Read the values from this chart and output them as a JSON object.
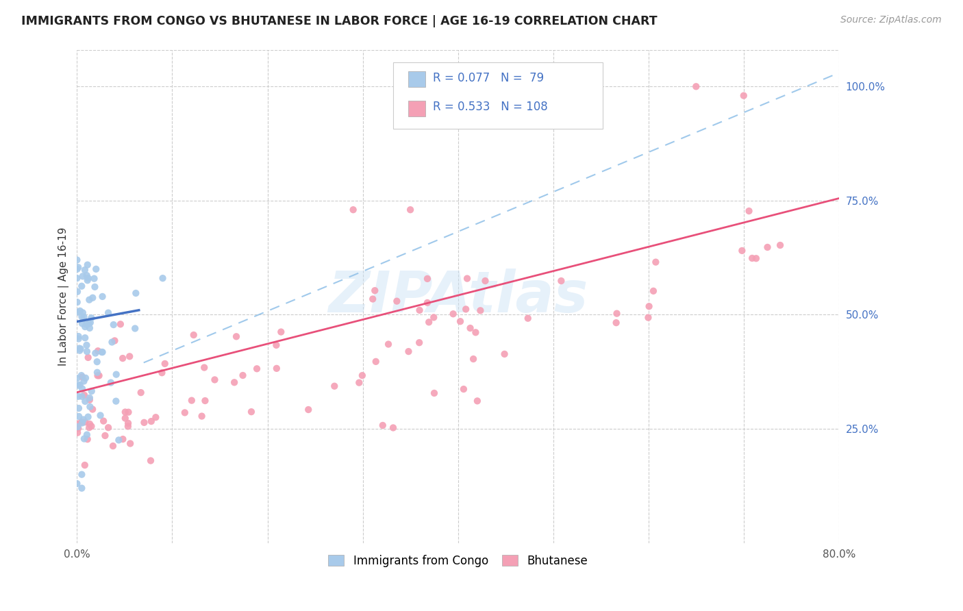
{
  "title": "IMMIGRANTS FROM CONGO VS BHUTANESE IN LABOR FORCE | AGE 16-19 CORRELATION CHART",
  "source": "Source: ZipAtlas.com",
  "ylabel": "In Labor Force | Age 16-19",
  "xlim": [
    0.0,
    0.8
  ],
  "ylim": [
    0.0,
    1.08
  ],
  "ytick_labels_right": [
    "25.0%",
    "50.0%",
    "75.0%",
    "100.0%"
  ],
  "ytick_values_right": [
    0.25,
    0.5,
    0.75,
    1.0
  ],
  "congo_R": "0.077",
  "congo_N": " 79",
  "bhutan_R": "0.533",
  "bhutan_N": "108",
  "legend_label_congo": "Immigrants from Congo",
  "legend_label_bhutan": "Bhutanese",
  "congo_color": "#A8CAEA",
  "bhutan_color": "#F4A0B5",
  "congo_line_color": "#4472C4",
  "bhutan_line_color": "#E8507A",
  "dashed_line_color": "#90C0E8",
  "watermark": "ZIPAtlas",
  "grid_color": "#CCCCCC",
  "legend_text_color": "#4472C4",
  "right_tick_color": "#4472C4"
}
